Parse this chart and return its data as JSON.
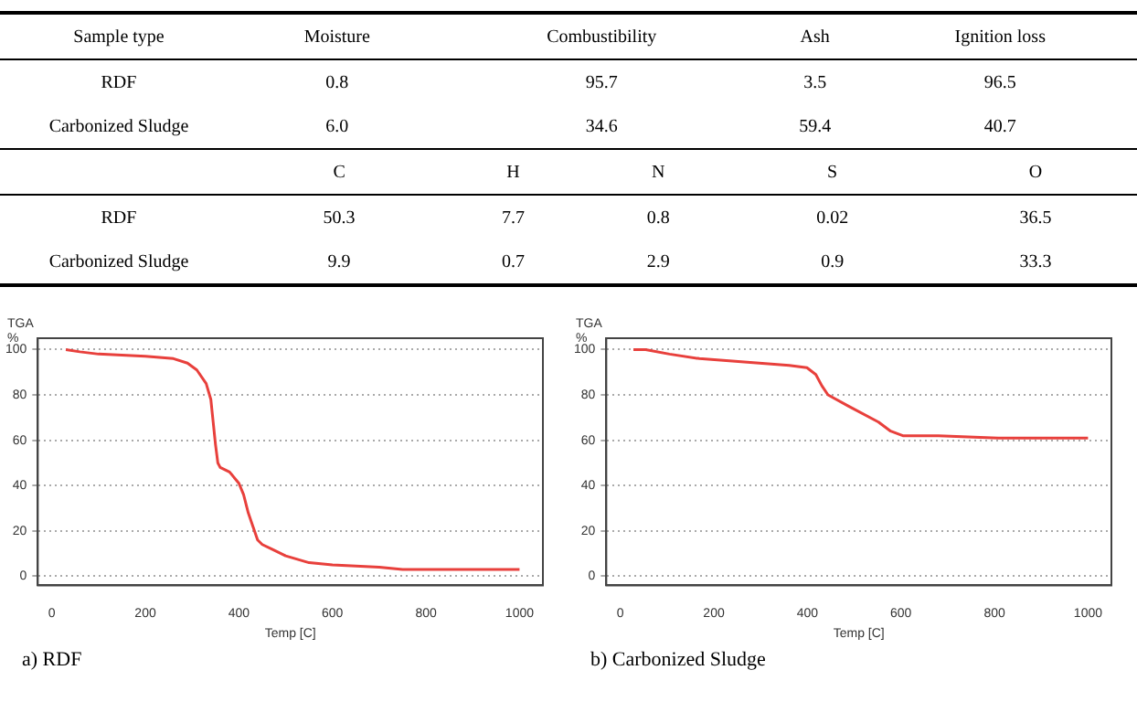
{
  "chart_data": [
    {
      "type": "heatmap",
      "ylabel": "Sample type",
      "categories": [
        "Moisture",
        "Combustibility",
        "Ash",
        "Ignition loss"
      ],
      "y_categories": [
        "RDF",
        "Carbonized Sludge"
      ],
      "cells": [
        [
          0.8,
          95.7,
          3.5,
          96.5
        ],
        [
          6.0,
          34.6,
          59.4,
          40.7
        ]
      ],
      "cell_labels": [
        [
          "0.8",
          "95.7",
          "3.5",
          "96.5"
        ],
        [
          "6.0",
          "34.6",
          "59.4",
          "40.7"
        ]
      ],
      "data_labels": true
    },
    {
      "type": "heatmap",
      "categories": [
        "C",
        "H",
        "N",
        "S",
        "O"
      ],
      "y_categories": [
        "RDF",
        "Carbonized Sludge"
      ],
      "cells": [
        [
          50.3,
          7.7,
          0.8,
          0.02,
          36.5
        ],
        [
          9.9,
          0.7,
          2.9,
          0.9,
          33.3
        ]
      ],
      "data_labels": true
    },
    {
      "type": "line",
      "ylabel": "TGA %",
      "xlabel": "Temp [C]",
      "annotations": [
        "a) RDF"
      ],
      "xlim": [
        -30,
        1050
      ],
      "ylim": [
        -4,
        105
      ],
      "xticks": [
        0,
        200,
        400,
        600,
        800,
        1000
      ],
      "yticks": [
        0,
        20,
        40,
        60,
        80,
        100
      ],
      "grid": "y",
      "marker": "none",
      "line_style": "solid",
      "series": [
        {
          "color": "#e8403c",
          "x": [
            30,
            60,
            100,
            200,
            260,
            290,
            310,
            330,
            340,
            345,
            350,
            355,
            360,
            380,
            400,
            410,
            420,
            430,
            440,
            450,
            470,
            500,
            550,
            600,
            700,
            750,
            800,
            900,
            1000
          ],
          "values": [
            100,
            99,
            98,
            97,
            96,
            94,
            91,
            85,
            78,
            68,
            58,
            50,
            48,
            46,
            41,
            36,
            28,
            22,
            16,
            14,
            12,
            9,
            6,
            5,
            4,
            3,
            3,
            3,
            3
          ]
        }
      ]
    },
    {
      "type": "line",
      "ylabel": "TGA %",
      "xlabel": "Temp [C]",
      "annotations": [
        "b) Carbonized Sludge"
      ],
      "xlim": [
        -30,
        1050
      ],
      "ylim": [
        -4,
        105
      ],
      "xticks": [
        0,
        200,
        400,
        600,
        800,
        1000
      ],
      "yticks": [
        0,
        20,
        40,
        60,
        80,
        100
      ],
      "grid": "y",
      "marker": "none",
      "line_style": "solid",
      "series": [
        {
          "color": "#e8403c",
          "x": [
            28,
            54,
            105,
            169,
            233,
            297,
            361,
            399,
            418,
            431,
            444,
            488,
            552,
            578,
            604,
            680,
            808,
            1000
          ],
          "values": [
            100,
            100,
            98,
            96,
            95,
            94,
            93,
            92,
            89,
            84,
            80,
            75,
            68,
            64,
            62,
            62,
            61,
            61
          ]
        }
      ]
    }
  ]
}
